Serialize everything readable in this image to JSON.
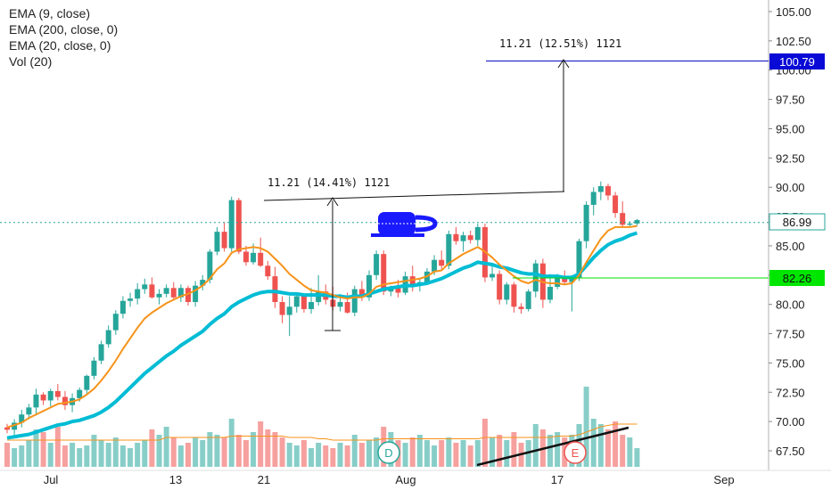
{
  "legend": {
    "ema9": "EMA (9, close)",
    "ema200": "EMA (200, close, 0)",
    "ema20": "EMA (20, close, 0)",
    "vol": "Vol (20)"
  },
  "colors": {
    "up": "#26a69a",
    "down": "#ef5350",
    "ema9": "#f7931a",
    "ema20": "#00bcd4",
    "vol_ma": "#f7931a",
    "target_line": "#0000c0",
    "support_line": "#00e000",
    "last_price": "#26a69a"
  },
  "price_tags": {
    "target": "100.79",
    "last": "86.99",
    "support": "82.26"
  },
  "annotations": {
    "measure1": "11.21 (14.41%) 1121",
    "measure2": "11.21 (12.51%) 1121"
  },
  "markers": {
    "dividend": "D",
    "earnings": "E"
  },
  "chart_data": {
    "type": "candlestick",
    "y_axis": {
      "ticks": [
        67.5,
        70.0,
        72.5,
        75.0,
        77.5,
        80.0,
        82.5,
        85.0,
        87.5,
        90.0,
        92.5,
        95.0,
        97.5,
        100.0,
        102.5,
        105.0
      ],
      "ylim": [
        66.3,
        106.2
      ]
    },
    "x_axis": {
      "labels": [
        "Jul",
        "13",
        "21",
        "Aug",
        "17",
        "Sep"
      ]
    },
    "candles": [
      [
        69.5,
        69.8,
        69.0,
        69.3
      ],
      [
        69.3,
        70.2,
        68.8,
        69.9
      ],
      [
        69.9,
        71.0,
        69.5,
        70.6
      ],
      [
        70.6,
        71.5,
        70.2,
        71.2
      ],
      [
        71.2,
        72.8,
        70.5,
        72.3
      ],
      [
        72.3,
        72.5,
        71.4,
        71.8
      ],
      [
        71.8,
        72.8,
        71.3,
        72.6
      ],
      [
        72.6,
        73.2,
        71.8,
        72.1
      ],
      [
        72.1,
        72.6,
        71.0,
        71.4
      ],
      [
        71.4,
        72.4,
        70.8,
        72.0
      ],
      [
        72.0,
        72.9,
        71.7,
        72.7
      ],
      [
        72.7,
        74.0,
        72.4,
        73.9
      ],
      [
        73.9,
        75.5,
        73.6,
        75.2
      ],
      [
        75.2,
        76.9,
        74.9,
        76.6
      ],
      [
        76.6,
        78.2,
        76.3,
        77.8
      ],
      [
        77.8,
        79.5,
        77.4,
        79.2
      ],
      [
        79.2,
        80.7,
        78.8,
        80.3
      ],
      [
        80.3,
        81.0,
        79.8,
        80.5
      ],
      [
        80.5,
        81.8,
        80.0,
        81.3
      ],
      [
        81.3,
        82.2,
        80.9,
        81.7
      ],
      [
        81.7,
        82.3,
        80.5,
        80.6
      ],
      [
        80.6,
        81.3,
        80.0,
        80.9
      ],
      [
        80.9,
        81.7,
        80.6,
        81.4
      ],
      [
        81.4,
        81.9,
        80.4,
        80.6
      ],
      [
        80.6,
        81.7,
        80.2,
        81.4
      ],
      [
        81.4,
        81.6,
        79.9,
        80.2
      ],
      [
        80.2,
        82.0,
        79.8,
        81.6
      ],
      [
        81.6,
        82.5,
        81.2,
        82.1
      ],
      [
        82.1,
        84.7,
        81.8,
        84.5
      ],
      [
        84.5,
        86.6,
        84.2,
        86.2
      ],
      [
        86.2,
        87.0,
        84.5,
        84.8
      ],
      [
        84.8,
        89.2,
        84.5,
        88.9
      ],
      [
        88.9,
        89.1,
        84.3,
        84.5
      ],
      [
        84.5,
        85.0,
        83.3,
        83.6
      ],
      [
        83.6,
        85.2,
        83.4,
        84.4
      ],
      [
        84.4,
        85.7,
        83.2,
        83.3
      ],
      [
        83.3,
        83.7,
        82.1,
        82.4
      ],
      [
        82.4,
        83.2,
        79.7,
        80.2
      ],
      [
        80.2,
        80.7,
        78.4,
        79.1
      ],
      [
        79.1,
        80.7,
        77.3,
        79.8
      ],
      [
        79.8,
        81.0,
        79.3,
        80.7
      ],
      [
        80.7,
        80.9,
        79.3,
        79.6
      ],
      [
        79.6,
        81.4,
        79.2,
        80.2
      ],
      [
        80.2,
        82.5,
        79.9,
        81.1
      ],
      [
        81.1,
        81.7,
        80.0,
        80.4
      ],
      [
        80.4,
        81.5,
        79.5,
        79.8
      ],
      [
        79.8,
        80.9,
        79.4,
        80.2
      ],
      [
        80.2,
        81.0,
        79.2,
        79.3
      ],
      [
        79.3,
        81.6,
        79.0,
        81.3
      ],
      [
        81.3,
        82.0,
        80.3,
        80.6
      ],
      [
        80.6,
        82.9,
        80.3,
        82.5
      ],
      [
        82.5,
        84.6,
        82.1,
        84.3
      ],
      [
        84.3,
        84.6,
        80.8,
        81.1
      ],
      [
        81.1,
        81.6,
        80.7,
        81.4
      ],
      [
        81.4,
        82.1,
        80.6,
        81.0
      ],
      [
        81.0,
        82.8,
        80.8,
        82.4
      ],
      [
        82.4,
        83.3,
        81.1,
        81.6
      ],
      [
        81.6,
        82.2,
        81.1,
        81.9
      ],
      [
        81.9,
        83.1,
        81.7,
        82.8
      ],
      [
        82.8,
        84.2,
        82.5,
        83.8
      ],
      [
        83.8,
        84.6,
        83.0,
        83.3
      ],
      [
        83.3,
        86.3,
        83.0,
        86.0
      ],
      [
        86.0,
        86.6,
        85.1,
        85.4
      ],
      [
        85.4,
        86.2,
        84.5,
        85.9
      ],
      [
        85.9,
        86.3,
        85.2,
        85.5
      ],
      [
        85.5,
        86.9,
        85.0,
        86.6
      ],
      [
        86.6,
        86.9,
        81.9,
        82.3
      ],
      [
        82.3,
        83.5,
        82.0,
        82.6
      ],
      [
        82.6,
        82.9,
        80.0,
        80.4
      ],
      [
        80.4,
        81.9,
        80.0,
        81.7
      ],
      [
        81.7,
        81.9,
        79.3,
        79.8
      ],
      [
        79.8,
        80.1,
        79.2,
        79.6
      ],
      [
        79.6,
        81.3,
        79.4,
        81.1
      ],
      [
        81.1,
        83.8,
        80.6,
        83.5
      ],
      [
        83.5,
        83.9,
        79.7,
        80.4
      ],
      [
        80.4,
        82.6,
        80.1,
        81.5
      ],
      [
        81.5,
        82.6,
        81.3,
        82.4
      ],
      [
        82.4,
        82.9,
        81.7,
        81.9
      ],
      [
        81.9,
        82.5,
        79.4,
        82.3
      ],
      [
        82.3,
        85.6,
        82.0,
        85.4
      ],
      [
        85.4,
        88.8,
        84.8,
        88.5
      ],
      [
        88.5,
        90.0,
        87.6,
        89.6
      ],
      [
        89.6,
        90.5,
        88.9,
        90.1
      ],
      [
        90.1,
        90.3,
        88.9,
        89.3
      ],
      [
        89.3,
        89.6,
        87.4,
        87.8
      ],
      [
        87.8,
        88.8,
        86.6,
        86.8
      ],
      [
        86.8,
        87.1,
        86.6,
        86.9
      ],
      [
        86.9,
        87.3,
        86.7,
        87.2
      ]
    ],
    "volumes": [
      0.9,
      0.7,
      0.8,
      1.0,
      1.4,
      1.3,
      0.9,
      1.5,
      0.8,
      0.9,
      0.7,
      0.8,
      1.2,
      1.0,
      0.9,
      1.1,
      0.8,
      0.7,
      0.9,
      1.0,
      1.4,
      1.2,
      1.5,
      1.1,
      0.8,
      0.9,
      1.1,
      1.0,
      1.3,
      1.2,
      1.1,
      1.8,
      1.2,
      1.0,
      1.3,
      1.7,
      1.4,
      1.3,
      1.1,
      0.9,
      0.8,
      1.0,
      0.7,
      0.9,
      0.8,
      0.7,
      0.9,
      0.8,
      1.2,
      0.9,
      1.0,
      1.1,
      1.5,
      1.3,
      1.0,
      0.9,
      1.1,
      1.2,
      1.0,
      0.8,
      1.0,
      1.1,
      0.9,
      1.0,
      0.8,
      1.0,
      1.8,
      1.1,
      1.2,
      1.0,
      1.3,
      0.9,
      1.0,
      1.6,
      1.4,
      1.2,
      1.3,
      1.1,
      1.2,
      1.6,
      3.0,
      1.8,
      1.6,
      1.4,
      1.7,
      1.2,
      1.1,
      0.7
    ],
    "ema9": [
      69.5,
      69.7,
      69.9,
      70.3,
      70.6,
      70.9,
      71.2,
      71.5,
      71.6,
      71.7,
      71.9,
      72.3,
      72.8,
      73.5,
      74.3,
      75.2,
      76.2,
      77.1,
      78.0,
      78.8,
      79.3,
      79.7,
      80.1,
      80.4,
      80.7,
      80.9,
      81.2,
      81.6,
      82.2,
      83.0,
      83.5,
      84.4,
      84.7,
      84.8,
      84.9,
      84.8,
      84.5,
      83.9,
      83.3,
      82.6,
      82.1,
      81.6,
      81.2,
      81.1,
      81.0,
      80.8,
      80.6,
      80.5,
      80.6,
      80.6,
      80.9,
      81.5,
      81.7,
      81.8,
      81.9,
      82.0,
      82.1,
      82.2,
      82.4,
      82.8,
      82.9,
      83.5,
      83.9,
      84.3,
      84.6,
      84.9,
      84.5,
      84.0,
      83.4,
      82.9,
      82.4,
      82.0,
      81.8,
      82.1,
      81.9,
      81.8,
      81.8,
      81.7,
      81.8,
      82.5,
      83.6,
      84.6,
      85.6,
      86.3,
      86.6,
      86.6,
      86.6,
      86.7
    ],
    "ema20": [
      68.6,
      68.7,
      68.8,
      68.9,
      69.1,
      69.3,
      69.5,
      69.7,
      69.8,
      70.0,
      70.1,
      70.3,
      70.5,
      70.8,
      71.2,
      71.7,
      72.3,
      72.9,
      73.5,
      74.1,
      74.6,
      75.1,
      75.6,
      76.0,
      76.5,
      76.9,
      77.3,
      77.7,
      78.3,
      78.8,
      79.2,
      79.8,
      80.2,
      80.5,
      80.8,
      81.0,
      81.1,
      81.1,
      81.0,
      80.9,
      80.9,
      80.8,
      80.8,
      80.8,
      80.8,
      80.7,
      80.7,
      80.6,
      80.7,
      80.7,
      80.9,
      81.1,
      81.3,
      81.4,
      81.5,
      81.6,
      81.6,
      81.7,
      81.8,
      82.0,
      82.2,
      82.5,
      82.8,
      83.1,
      83.3,
      83.6,
      83.5,
      83.4,
      83.2,
      83.1,
      82.9,
      82.7,
      82.6,
      82.6,
      82.4,
      82.4,
      82.4,
      82.3,
      82.3,
      82.6,
      83.3,
      84.0,
      84.6,
      85.1,
      85.4,
      85.6,
      85.9,
      86.1
    ],
    "vol_ma": [
      1.0,
      1.0,
      1.0,
      1.0,
      1.0,
      1.0,
      1.0,
      1.0,
      1.0,
      1.0,
      1.0,
      1.0,
      1.0,
      1.0,
      1.0,
      1.0,
      1.0,
      1.0,
      1.0,
      1.0,
      1.0,
      1.0,
      1.1,
      1.1,
      1.1,
      1.1,
      1.1,
      1.1,
      1.1,
      1.1,
      1.1,
      1.15,
      1.15,
      1.15,
      1.15,
      1.15,
      1.15,
      1.15,
      1.15,
      1.1,
      1.1,
      1.1,
      1.1,
      1.05,
      1.05,
      1.0,
      1.0,
      1.0,
      1.0,
      1.0,
      1.0,
      1.0,
      1.05,
      1.05,
      1.05,
      1.05,
      1.05,
      1.05,
      1.05,
      1.05,
      1.05,
      1.05,
      1.05,
      1.05,
      1.05,
      1.05,
      1.1,
      1.1,
      1.1,
      1.1,
      1.1,
      1.1,
      1.1,
      1.1,
      1.1,
      1.1,
      1.15,
      1.15,
      1.15,
      1.2,
      1.3,
      1.4,
      1.5,
      1.55,
      1.6,
      1.6,
      1.6,
      1.6
    ],
    "levels": {
      "target": 100.79,
      "last": 86.99,
      "support": 82.26
    }
  }
}
